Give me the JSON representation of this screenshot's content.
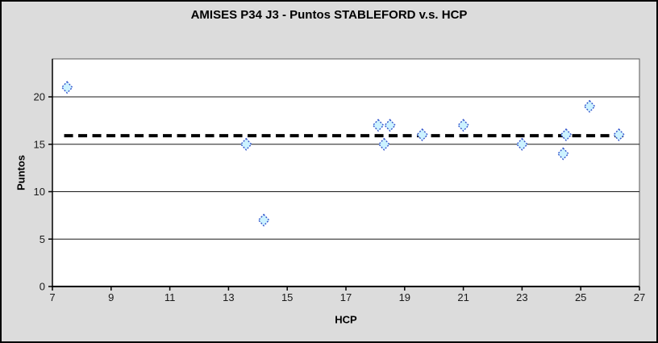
{
  "window": {
    "background_color": "#dcdcdc",
    "plot_background_color": "#ffffff",
    "frame_border_color": "#000000"
  },
  "chart_data": {
    "type": "scatter",
    "title": "AMISES P34 J3 - Puntos STABLEFORD v.s. HCP",
    "xlabel": "HCP",
    "ylabel": "Puntos",
    "xlim": [
      7,
      27
    ],
    "ylim": [
      0,
      24
    ],
    "xticks": [
      7,
      9,
      11,
      13,
      15,
      17,
      19,
      21,
      23,
      25,
      27
    ],
    "yticks": [
      0,
      5,
      10,
      15,
      20
    ],
    "grid": "horizontal-major",
    "legend": "none",
    "series": [
      {
        "name": "Puntos STABLEFORD",
        "marker": "diamond",
        "marker_fill": "#ccf2ff",
        "marker_stroke": "#3355cc",
        "points": [
          {
            "x": 7.5,
            "y": 21
          },
          {
            "x": 13.6,
            "y": 15
          },
          {
            "x": 14.2,
            "y": 7
          },
          {
            "x": 18.1,
            "y": 17
          },
          {
            "x": 18.3,
            "y": 15
          },
          {
            "x": 18.5,
            "y": 17
          },
          {
            "x": 19.6,
            "y": 16
          },
          {
            "x": 21.0,
            "y": 17
          },
          {
            "x": 23.0,
            "y": 15
          },
          {
            "x": 24.4,
            "y": 14
          },
          {
            "x": 24.5,
            "y": 16
          },
          {
            "x": 25.3,
            "y": 19
          },
          {
            "x": 26.3,
            "y": 16
          }
        ]
      }
    ],
    "trendline": {
      "style": "dashed",
      "color": "#000000",
      "x_start": 7.4,
      "x_end": 26.6,
      "y_start": 15.9,
      "y_end": 15.9
    }
  }
}
